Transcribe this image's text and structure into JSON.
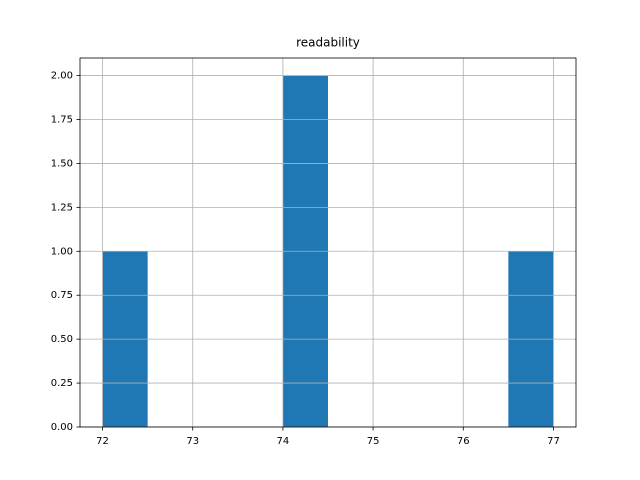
{
  "chart_data": {
    "type": "histogram",
    "title": "readability",
    "bins": [
      72,
      72.5,
      73,
      73.5,
      74,
      74.5,
      75,
      75.5,
      76,
      76.5,
      77
    ],
    "values": [
      1,
      0,
      0,
      0,
      2,
      0,
      0,
      0,
      0,
      1
    ],
    "color": "#1f77b4",
    "xlim": [
      71.75,
      77.25
    ],
    "xticks": [
      72,
      73,
      74,
      75,
      76,
      77
    ],
    "ylim": [
      0,
      2.1
    ],
    "yticks": [
      {
        "value": 0,
        "label": "0.00"
      },
      {
        "value": 0.25,
        "label": "0.25"
      },
      {
        "value": 0.5,
        "label": "0.50"
      },
      {
        "value": 0.75,
        "label": "0.75"
      },
      {
        "value": 1,
        "label": "1.00"
      },
      {
        "value": 1.25,
        "label": "1.25"
      },
      {
        "value": 1.5,
        "label": "1.50"
      },
      {
        "value": 1.75,
        "label": "1.75"
      },
      {
        "value": 2,
        "label": "2.00"
      }
    ],
    "grid": true
  }
}
